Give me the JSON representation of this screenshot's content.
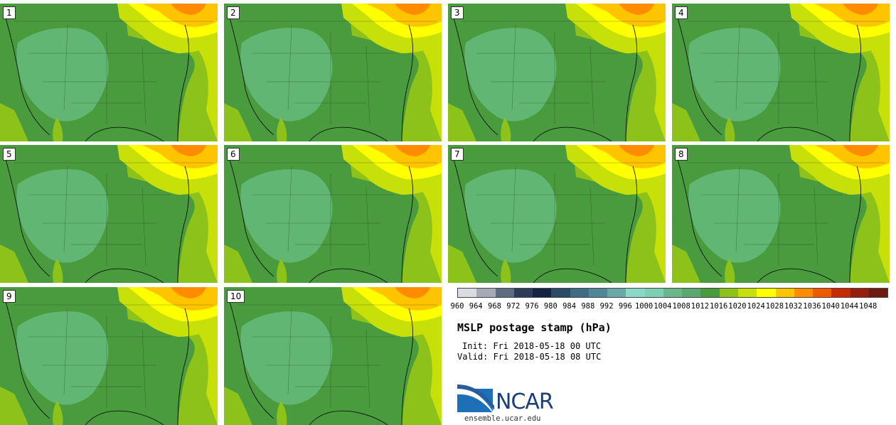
{
  "panels": [
    {
      "label": "1"
    },
    {
      "label": "2"
    },
    {
      "label": "3"
    },
    {
      "label": "4"
    },
    {
      "label": "5"
    },
    {
      "label": "6"
    },
    {
      "label": "7"
    },
    {
      "label": "8"
    },
    {
      "label": "9"
    },
    {
      "label": "10"
    }
  ],
  "legend": {
    "unit": "hPa",
    "levels": [
      "960",
      "964",
      "968",
      "972",
      "976",
      "980",
      "984",
      "988",
      "992",
      "996",
      "1000",
      "1004",
      "1008",
      "1012",
      "1016",
      "1020",
      "1024",
      "1028",
      "1032",
      "1036",
      "1040",
      "1044",
      "1048"
    ],
    "colors": [
      "#d9dde3",
      "#a6a9b6",
      "#5f6b80",
      "#2d3b56",
      "#142341",
      "#2a4a66",
      "#3d6d82",
      "#4e8795",
      "#6aa8a8",
      "#8ad8c8",
      "#7ad0b0",
      "#6ab88a",
      "#5aa870",
      "#4a9a3e",
      "#8cc21a",
      "#c8e00a",
      "#ffff00",
      "#ffc400",
      "#ff8c00",
      "#ee5a00",
      "#c82a00",
      "#961e10",
      "#6e1a10"
    ]
  },
  "title": "MSLP postage stamp (hPa)",
  "init_label": "Init: Fri 2018-05-18 00 UTC",
  "valid_label": "Valid: Fri 2018-05-18 08 UTC",
  "logo": {
    "name": "NCAR",
    "url": "ensemble.ucar.edu"
  },
  "colors": {
    "low_interior": "#6abf86",
    "mid": "#4a9a3e",
    "ridge": "#8cc21a",
    "high_lime": "#c8e00a",
    "high_yellow": "#ffff00",
    "high_orange": "#ffc400",
    "peak": "#ff8c00"
  }
}
